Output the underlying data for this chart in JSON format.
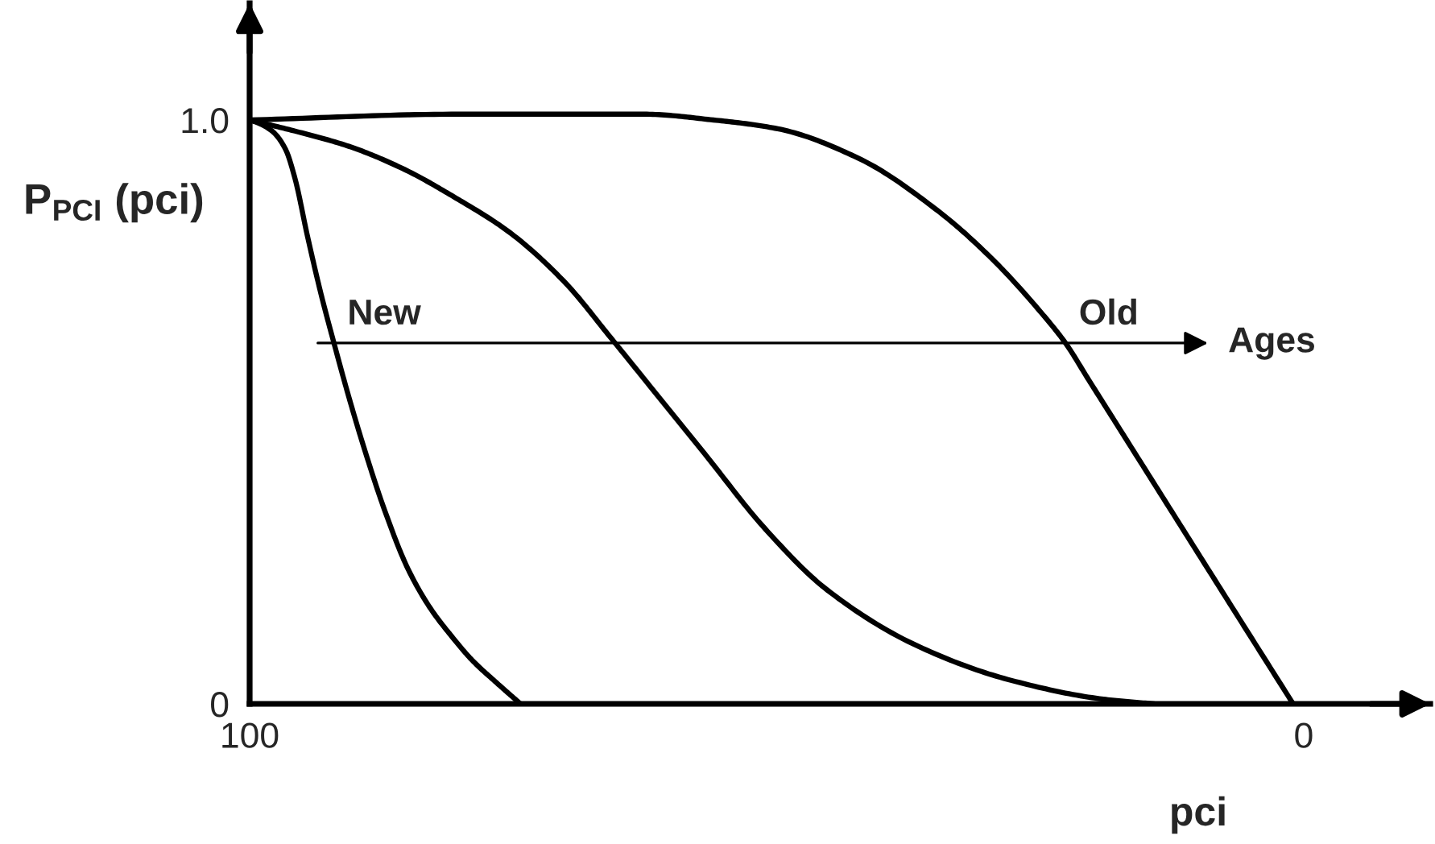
{
  "chart_data": {
    "type": "line",
    "xlabel": "pci",
    "ylabel": "P$_{PCI}$ (pci)",
    "xlim": [
      100,
      -12
    ],
    "ylim": [
      0,
      1.2
    ],
    "xticks": [
      100,
      0
    ],
    "yticks": [
      0,
      {
        "value": 1,
        "label": "1.0"
      }
    ],
    "line_style": "solid",
    "series": [
      {
        "color": "#000000",
        "x": [
          100,
          99.2,
          97.8,
          96.6,
          95.7,
          94.5,
          93.2,
          92.0,
          90.5,
          89.0,
          87.2,
          85.0,
          82.9,
          80.8,
          78.9,
          76.5,
          74.3
        ],
        "values": [
          1.0,
          0.995,
          0.98,
          0.95,
          0.9,
          0.8,
          0.7,
          0.618,
          0.52,
          0.43,
          0.332,
          0.232,
          0.165,
          0.115,
          0.075,
          0.035,
          0.0
        ]
      },
      {
        "color": "#000000",
        "x": [
          100,
          95.7,
          90.6,
          85.5,
          80.4,
          75.3,
          70.2,
          65.6,
          62.1,
          56.9,
          51.1,
          45.2,
          36.5,
          27.7,
          19.0,
          14.2
        ],
        "values": [
          1.0,
          0.981,
          0.955,
          0.917,
          0.866,
          0.807,
          0.724,
          0.624,
          0.546,
          0.43,
          0.3,
          0.195,
          0.098,
          0.04,
          0.008,
          0.0
        ]
      },
      {
        "color": "#000000",
        "x": [
          100,
          80,
          62.6,
          56.0,
          49.9,
          42.3,
          34.6,
          29.5,
          24.9,
          22.6,
          20.4,
          16.8,
          11.7,
          6.6,
          1.0
        ],
        "values": [
          1.0,
          1.01,
          1.01,
          1.0,
          0.985,
          0.935,
          0.843,
          0.761,
          0.67,
          0.618,
          0.555,
          0.452,
          0.306,
          0.16,
          0.0
        ]
      }
    ],
    "annotations": [
      {
        "text": "New",
        "x": 92.0,
        "y": 0.618
      },
      {
        "text": "Old",
        "x": 22.6,
        "y": 0.618
      },
      "Ages"
    ]
  }
}
